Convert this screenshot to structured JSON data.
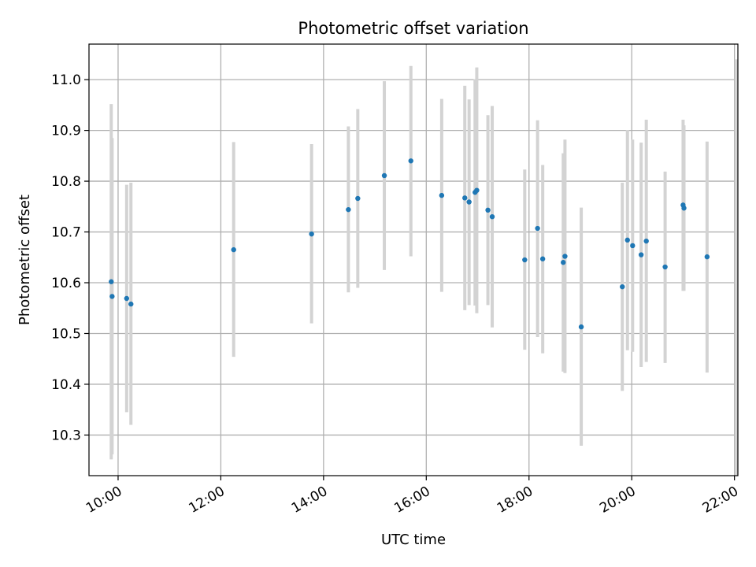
{
  "chart_data": {
    "type": "scatter",
    "title": "Photometric offset variation",
    "xlabel": "UTC time",
    "ylabel": "Photometric offset",
    "x_ticks": [
      "10:00",
      "12:00",
      "14:00",
      "16:00",
      "18:00",
      "20:00",
      "22:00"
    ],
    "y_ticks": [
      "10.3",
      "10.4",
      "10.5",
      "10.6",
      "10.7",
      "10.8",
      "10.9",
      "11.0"
    ],
    "xlim": [
      "09:26",
      "22:04"
    ],
    "ylim": [
      10.22,
      11.07
    ],
    "grid": true,
    "legend": "none",
    "colors": {
      "point": "#1f77b4",
      "errorbar": "#d3d3d3",
      "grid": "#b0b0b0"
    },
    "points": [
      {
        "t": "09:52",
        "y": 10.602,
        "lo": 10.252,
        "hi": 10.952
      },
      {
        "t": "09:53",
        "y": 10.573,
        "lo": 10.262,
        "hi": 10.885
      },
      {
        "t": "10:10",
        "y": 10.569,
        "lo": 10.345,
        "hi": 10.793
      },
      {
        "t": "10:15",
        "y": 10.558,
        "lo": 10.32,
        "hi": 10.797
      },
      {
        "t": "12:15",
        "y": 10.665,
        "lo": 10.454,
        "hi": 10.877
      },
      {
        "t": "13:46",
        "y": 10.696,
        "lo": 10.52,
        "hi": 10.873
      },
      {
        "t": "14:29",
        "y": 10.744,
        "lo": 10.581,
        "hi": 10.908
      },
      {
        "t": "14:40",
        "y": 10.766,
        "lo": 10.59,
        "hi": 10.942
      },
      {
        "t": "15:11",
        "y": 10.811,
        "lo": 10.625,
        "hi": 10.997
      },
      {
        "t": "15:42",
        "y": 10.84,
        "lo": 10.652,
        "hi": 11.027
      },
      {
        "t": "16:18",
        "y": 10.772,
        "lo": 10.582,
        "hi": 10.962
      },
      {
        "t": "16:45",
        "y": 10.767,
        "lo": 10.546,
        "hi": 10.988
      },
      {
        "t": "16:50",
        "y": 10.759,
        "lo": 10.556,
        "hi": 10.961
      },
      {
        "t": "16:57",
        "y": 10.778,
        "lo": 10.555,
        "hi": 11.001
      },
      {
        "t": "16:59",
        "y": 10.782,
        "lo": 10.54,
        "hi": 11.024
      },
      {
        "t": "17:12",
        "y": 10.743,
        "lo": 10.556,
        "hi": 10.93
      },
      {
        "t": "17:17",
        "y": 10.73,
        "lo": 10.512,
        "hi": 10.948
      },
      {
        "t": "17:55",
        "y": 10.645,
        "lo": 10.468,
        "hi": 10.823
      },
      {
        "t": "18:10",
        "y": 10.707,
        "lo": 10.493,
        "hi": 10.92
      },
      {
        "t": "18:16",
        "y": 10.647,
        "lo": 10.461,
        "hi": 10.832
      },
      {
        "t": "18:40",
        "y": 10.64,
        "lo": 10.425,
        "hi": 10.855
      },
      {
        "t": "18:42",
        "y": 10.652,
        "lo": 10.422,
        "hi": 10.882
      },
      {
        "t": "19:01",
        "y": 10.513,
        "lo": 10.279,
        "hi": 10.748
      },
      {
        "t": "19:49",
        "y": 10.592,
        "lo": 10.387,
        "hi": 10.797
      },
      {
        "t": "19:55",
        "y": 10.684,
        "lo": 10.467,
        "hi": 10.901
      },
      {
        "t": "20:01",
        "y": 10.673,
        "lo": 10.464,
        "hi": 10.882
      },
      {
        "t": "20:11",
        "y": 10.655,
        "lo": 10.434,
        "hi": 10.876
      },
      {
        "t": "20:17",
        "y": 10.682,
        "lo": 10.444,
        "hi": 10.921
      },
      {
        "t": "20:39",
        "y": 10.631,
        "lo": 10.442,
        "hi": 10.819
      },
      {
        "t": "21:00",
        "y": 10.753,
        "lo": 10.584,
        "hi": 10.921
      },
      {
        "t": "21:01",
        "y": 10.747,
        "lo": 10.584,
        "hi": 10.91
      },
      {
        "t": "21:28",
        "y": 10.651,
        "lo": 10.423,
        "hi": 10.878
      },
      {
        "t": "22:02",
        "y": null,
        "lo": 10.22,
        "hi": 11.04
      }
    ]
  }
}
